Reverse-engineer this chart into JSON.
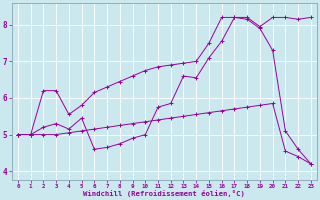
{
  "xlabel": "Windchill (Refroidissement éolien,°C)",
  "bg_color": "#cce8ef",
  "grid_color": "#aad4dc",
  "line_color": "#990099",
  "xlim": [
    -0.5,
    23.5
  ],
  "ylim": [
    3.75,
    8.6
  ],
  "yticks": [
    4,
    5,
    6,
    7,
    8
  ],
  "xticks": [
    0,
    1,
    2,
    3,
    4,
    5,
    6,
    7,
    8,
    9,
    10,
    11,
    12,
    13,
    14,
    15,
    16,
    17,
    18,
    19,
    20,
    21,
    22,
    23
  ],
  "line1_x": [
    0,
    1,
    2,
    3,
    4,
    5,
    6,
    7,
    8,
    9,
    10,
    11,
    12,
    13,
    14,
    15,
    16,
    17,
    18,
    19,
    20,
    21,
    22,
    23
  ],
  "line1_y": [
    5.0,
    5.0,
    5.0,
    5.0,
    5.05,
    5.1,
    5.15,
    5.2,
    5.25,
    5.3,
    5.35,
    5.4,
    5.45,
    5.5,
    5.55,
    5.6,
    5.65,
    5.7,
    5.75,
    5.8,
    5.85,
    4.55,
    4.4,
    4.2
  ],
  "line2_x": [
    0,
    1,
    2,
    3,
    4,
    5,
    6,
    7,
    8,
    9,
    10,
    11,
    12,
    13,
    14,
    15,
    16,
    17,
    18,
    19,
    20,
    21,
    22,
    23
  ],
  "line2_y": [
    5.0,
    5.0,
    5.2,
    5.3,
    5.15,
    5.45,
    4.6,
    4.65,
    4.75,
    4.9,
    5.0,
    5.75,
    5.85,
    6.6,
    6.55,
    7.1,
    7.55,
    8.2,
    8.15,
    7.9,
    7.3,
    5.1,
    4.6,
    4.2
  ],
  "line3_x": [
    0,
    1,
    2,
    3,
    4,
    5,
    6,
    7,
    8,
    9,
    10,
    11,
    12,
    13,
    14,
    15,
    16,
    17,
    18,
    19,
    20,
    21,
    22,
    23
  ],
  "line3_y": [
    5.0,
    5.0,
    6.2,
    6.2,
    5.55,
    5.8,
    6.15,
    6.3,
    6.45,
    6.6,
    6.75,
    6.85,
    6.9,
    6.95,
    7.0,
    7.5,
    8.2,
    8.2,
    8.2,
    7.95,
    8.2,
    8.2,
    8.15,
    8.2
  ]
}
